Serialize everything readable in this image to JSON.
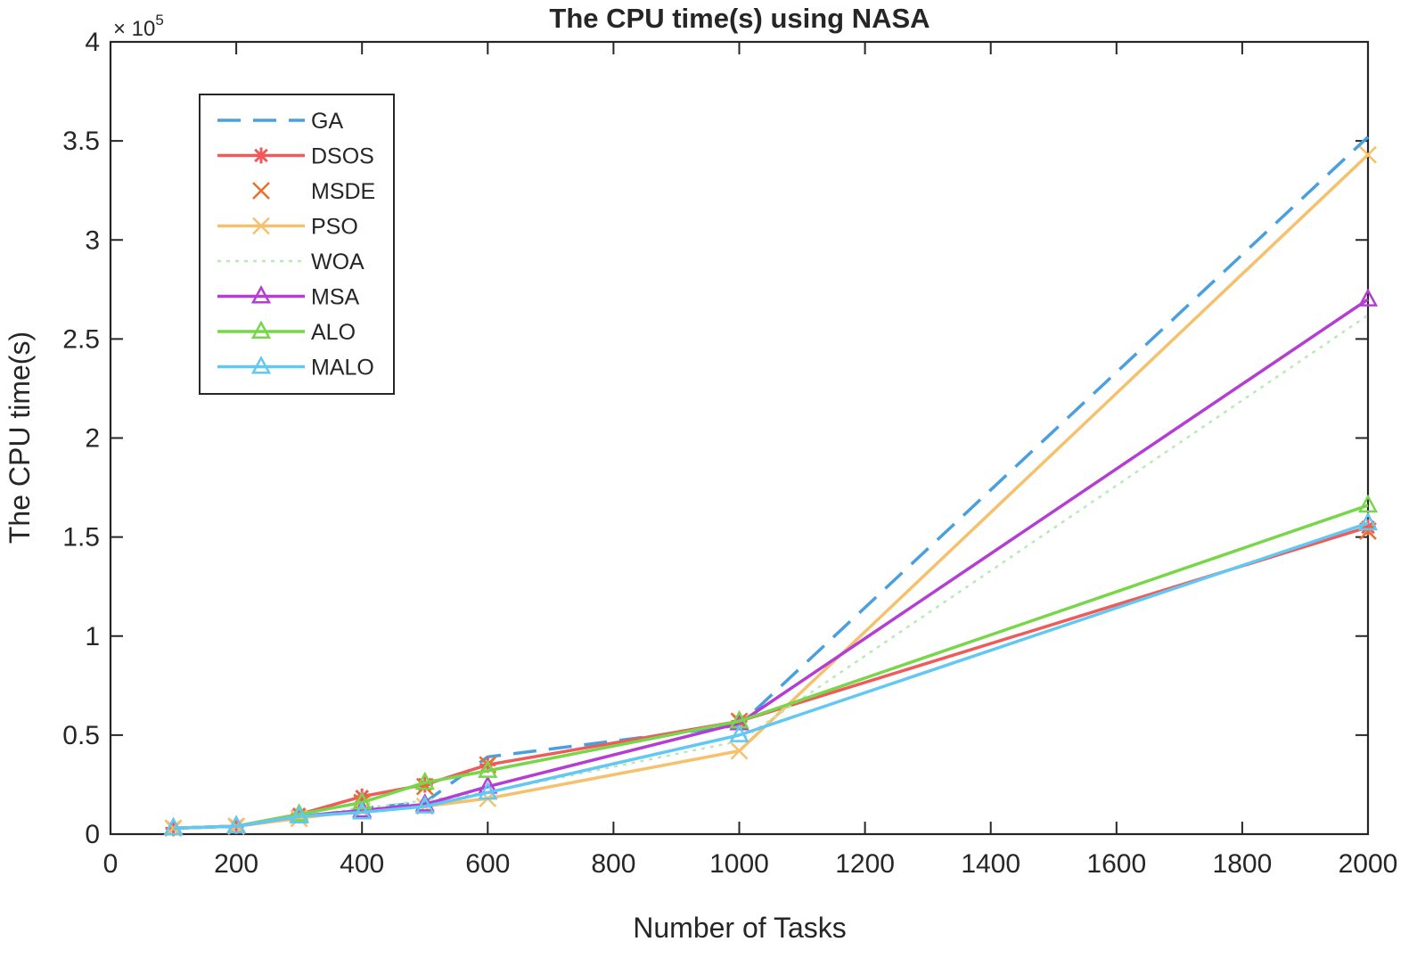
{
  "chart_data": {
    "type": "line",
    "title": "The CPU time(s) using NASA",
    "xlabel": "Number of Tasks",
    "ylabel": "The CPU time(s)",
    "y_exponent_label": "× 10",
    "y_exponent_power": "5",
    "xlim": [
      0,
      2000
    ],
    "ylim": [
      0,
      4
    ],
    "xticks": [
      "0",
      "200",
      "400",
      "600",
      "800",
      "1000",
      "1200",
      "1400",
      "1600",
      "1800",
      "2000"
    ],
    "yticks": [
      "0",
      "0.5",
      "1",
      "1.5",
      "2",
      "2.5",
      "3",
      "3.5",
      "4"
    ],
    "grid": false,
    "legend_position": "top-left",
    "x": [
      100,
      200,
      300,
      400,
      500,
      600,
      1000,
      2000
    ],
    "series": [
      {
        "name": "GA",
        "color": "#4aa0df",
        "style": "dashed",
        "marker": "none",
        "values": [
          0.03,
          0.04,
          0.08,
          0.13,
          0.16,
          0.39,
          0.55,
          3.52
        ]
      },
      {
        "name": "DSOS",
        "color": "#ef5a5a",
        "style": "solid",
        "marker": "star",
        "values": [
          0.03,
          0.04,
          0.1,
          0.19,
          0.25,
          0.35,
          0.57,
          1.55
        ]
      },
      {
        "name": "MSDE",
        "color": "#e8702a",
        "style": "none",
        "marker": "x",
        "values": [
          0.03,
          0.04,
          0.08,
          0.16,
          0.24,
          0.35,
          0.57,
          1.53
        ]
      },
      {
        "name": "PSO",
        "color": "#f5c16c",
        "style": "solid",
        "marker": "x",
        "values": [
          0.03,
          0.04,
          0.08,
          0.12,
          0.14,
          0.18,
          0.42,
          3.43
        ]
      },
      {
        "name": "WOA",
        "color": "#b8eab8",
        "style": "dotted",
        "marker": "none",
        "values": [
          0.03,
          0.04,
          0.09,
          0.13,
          0.17,
          0.21,
          0.47,
          2.62
        ]
      },
      {
        "name": "MSA",
        "color": "#b43ed4",
        "style": "solid",
        "marker": "triangle",
        "values": [
          0.03,
          0.04,
          0.09,
          0.12,
          0.15,
          0.24,
          0.56,
          2.7
        ]
      },
      {
        "name": "ALO",
        "color": "#78d64a",
        "style": "solid",
        "marker": "triangle",
        "values": [
          0.03,
          0.04,
          0.1,
          0.16,
          0.26,
          0.32,
          0.57,
          1.66
        ]
      },
      {
        "name": "MALO",
        "color": "#62c8f2",
        "style": "solid",
        "marker": "triangle",
        "values": [
          0.03,
          0.04,
          0.09,
          0.11,
          0.14,
          0.21,
          0.5,
          1.57
        ]
      }
    ]
  }
}
